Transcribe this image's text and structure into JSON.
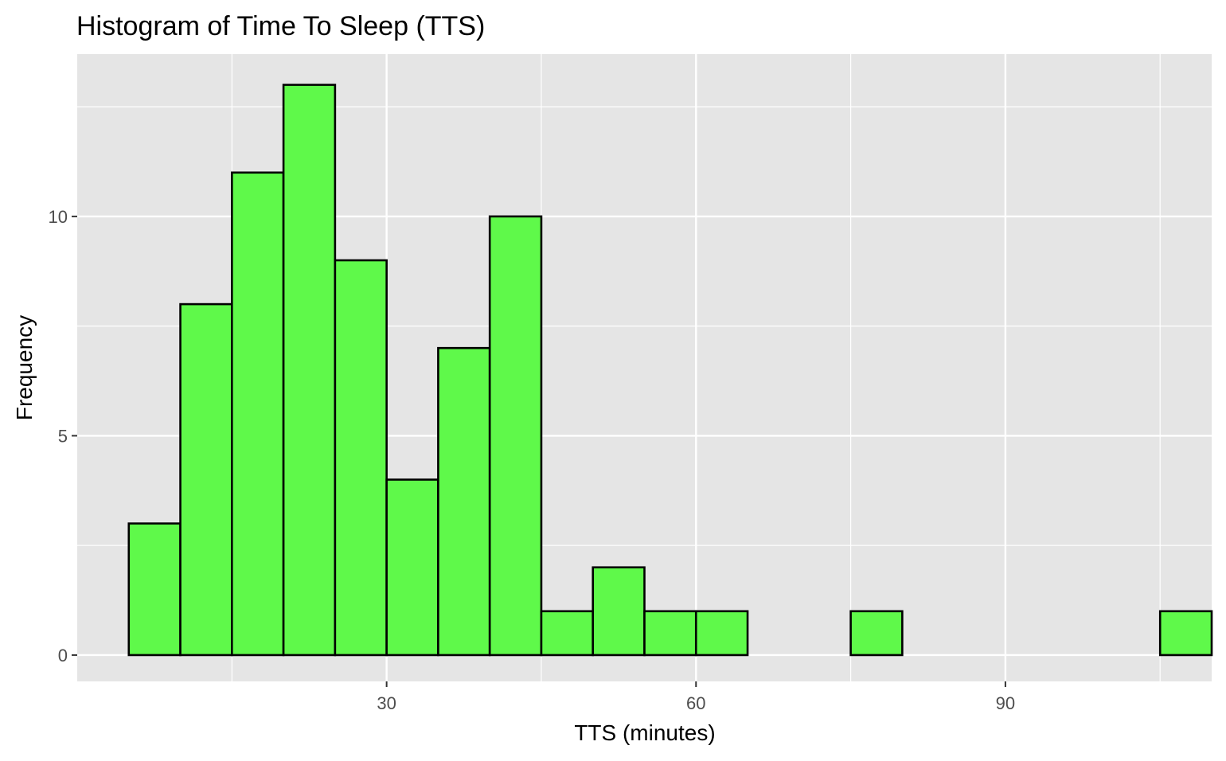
{
  "chart_data": {
    "type": "bar",
    "title": "Histogram of Time To Sleep (TTS)",
    "xlabel": "TTS (minutes)",
    "ylabel": "Frequency",
    "bin_width": 5,
    "bin_starts": [
      5,
      10,
      15,
      20,
      25,
      30,
      35,
      40,
      45,
      50,
      55,
      60,
      65,
      70,
      75,
      80,
      85,
      90,
      95,
      100,
      105
    ],
    "values": [
      3,
      8,
      11,
      13,
      9,
      4,
      7,
      10,
      1,
      2,
      1,
      1,
      0,
      0,
      1,
      0,
      0,
      0,
      0,
      0,
      1
    ],
    "xlim": [
      0,
      110
    ],
    "ylim": [
      -0.6,
      13.7
    ],
    "x_ticks": [
      30,
      60,
      90
    ],
    "x_tick_labels": [
      "30",
      "60",
      "90"
    ],
    "x_minor_ticks": [
      15,
      45,
      75,
      105
    ],
    "y_ticks": [
      0,
      5,
      10
    ],
    "y_tick_labels": [
      "0",
      "5",
      "10"
    ],
    "y_minor_ticks": [
      2.5,
      7.5,
      12.5
    ],
    "grid": true,
    "colors": {
      "bar_fill": "#5ff94a",
      "bar_stroke": "#000000",
      "panel_background": "#e5e5e5",
      "grid": "#ffffff",
      "text": "#000000",
      "tick_text": "#4d4d4d"
    }
  }
}
